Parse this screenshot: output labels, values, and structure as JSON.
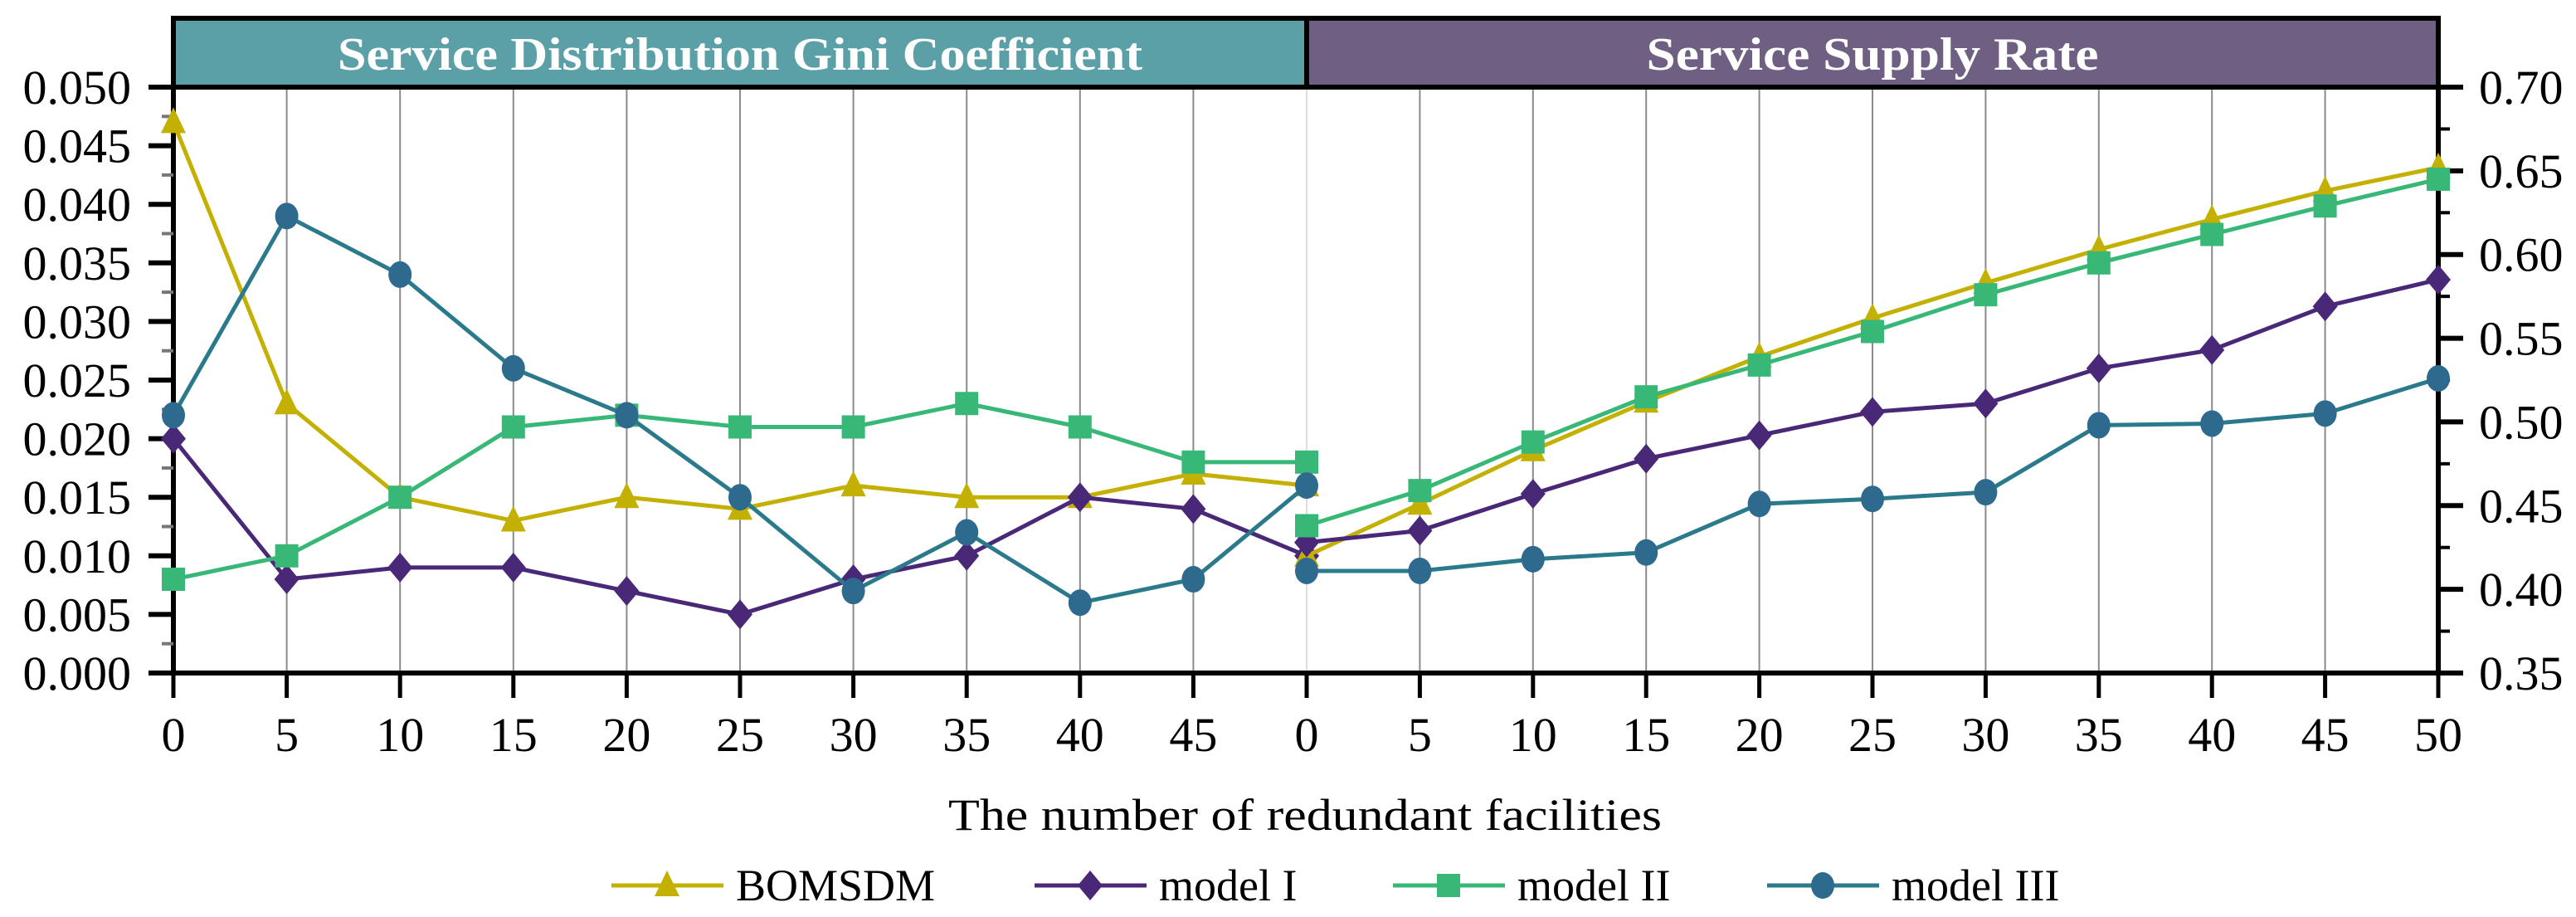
{
  "chart_data": [
    {
      "type": "line",
      "title": "Service Distribution Gini Coefficient",
      "xlabel": "The number of redundant facilities",
      "ylabel": "",
      "x": [
        0,
        5,
        10,
        15,
        20,
        25,
        30,
        35,
        40,
        45,
        50
      ],
      "x_tick_labels": [
        "0",
        "5",
        "10",
        "15",
        "20",
        "25",
        "30",
        "35",
        "40",
        "45"
      ],
      "ylim": [
        0,
        0.05
      ],
      "y_ticks": [
        "0.000",
        "0.005",
        "0.010",
        "0.015",
        "0.020",
        "0.025",
        "0.030",
        "0.035",
        "0.040",
        "0.045",
        "0.050"
      ],
      "y_axis": "left",
      "grid": "vertical",
      "series": [
        {
          "name": "BOMSDM",
          "values": [
            0.047,
            0.023,
            0.015,
            0.013,
            0.015,
            0.014,
            0.016,
            0.015,
            0.015,
            0.017,
            0.016
          ]
        },
        {
          "name": "model I",
          "values": [
            0.02,
            0.008,
            0.009,
            0.009,
            0.007,
            0.005,
            0.008,
            0.01,
            0.015,
            0.014,
            0.01
          ]
        },
        {
          "name": "model II",
          "values": [
            0.008,
            0.01,
            0.015,
            0.021,
            0.022,
            0.021,
            0.021,
            0.023,
            0.021,
            0.018,
            0.018
          ]
        },
        {
          "name": "model III",
          "values": [
            0.022,
            0.039,
            0.034,
            0.026,
            0.022,
            0.015,
            0.007,
            0.012,
            0.006,
            0.008,
            0.016
          ]
        }
      ]
    },
    {
      "type": "line",
      "title": "Service Supply Rate",
      "xlabel": "The number of redundant facilities",
      "ylabel": "",
      "x": [
        0,
        5,
        10,
        15,
        20,
        25,
        30,
        35,
        40,
        45,
        50
      ],
      "x_tick_labels": [
        "0",
        "5",
        "10",
        "15",
        "20",
        "25",
        "30",
        "35",
        "40",
        "45",
        "50"
      ],
      "ylim": [
        0.35,
        0.7
      ],
      "y_ticks": [
        "0.35",
        "0.40",
        "0.45",
        "0.50",
        "0.55",
        "0.60",
        "0.65",
        "0.70"
      ],
      "y_axis": "right",
      "grid": "vertical",
      "series": [
        {
          "name": "BOMSDM",
          "values": [
            0.42,
            0.451,
            0.483,
            0.512,
            0.539,
            0.562,
            0.583,
            0.603,
            0.621,
            0.638,
            0.652
          ]
        },
        {
          "name": "model I",
          "values": [
            0.428,
            0.435,
            0.457,
            0.478,
            0.492,
            0.506,
            0.511,
            0.532,
            0.543,
            0.569,
            0.585
          ]
        },
        {
          "name": "model II",
          "values": [
            0.438,
            0.459,
            0.488,
            0.515,
            0.534,
            0.554,
            0.576,
            0.595,
            0.612,
            0.629,
            0.645
          ]
        },
        {
          "name": "model III",
          "values": [
            0.411,
            0.411,
            0.418,
            0.422,
            0.451,
            0.454,
            0.458,
            0.498,
            0.499,
            0.505,
            0.526
          ]
        }
      ]
    }
  ],
  "legend": {
    "placement": "bottom",
    "items": [
      {
        "name": "BOMSDM",
        "color": "#C4B000",
        "marker": "triangle"
      },
      {
        "name": "model I",
        "color": "#4A2878",
        "marker": "diamond"
      },
      {
        "name": "model II",
        "color": "#38B877",
        "marker": "square"
      },
      {
        "name": "model III",
        "color": "#2E6A8E",
        "line_color": "#2A7A8C",
        "marker": "circle"
      }
    ]
  },
  "colors": {
    "header_left": "#5B9FA7",
    "header_right": "#6E5F83"
  }
}
